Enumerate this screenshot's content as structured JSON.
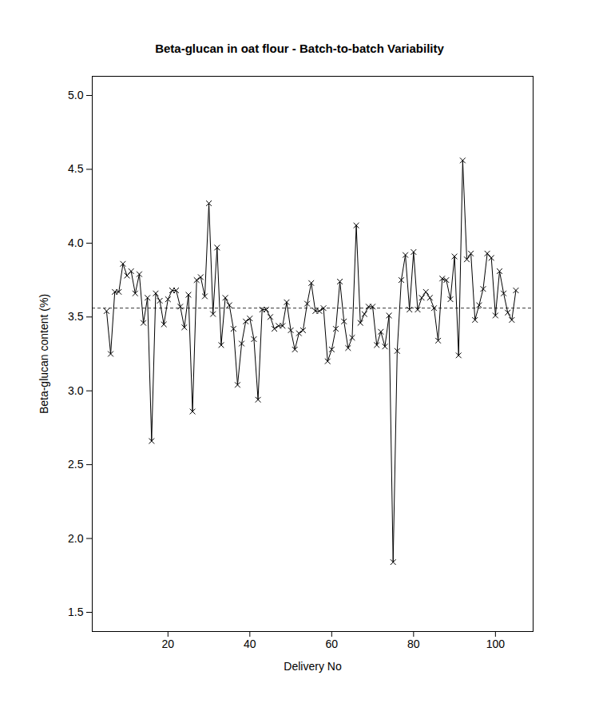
{
  "chart_data": {
    "type": "line",
    "title": "Beta-glucan in oat flour - Batch-to-batch Variability",
    "x_label": "Delivery No",
    "y_label": "Beta-glucan content (%)",
    "x": [
      5,
      6,
      7,
      8,
      9,
      10,
      11,
      12,
      13,
      14,
      15,
      16,
      17,
      18,
      19,
      20,
      21,
      22,
      23,
      24,
      25,
      26,
      27,
      28,
      29,
      30,
      31,
      32,
      33,
      34,
      35,
      36,
      37,
      38,
      39,
      40,
      41,
      42,
      43,
      44,
      45,
      46,
      47,
      48,
      49,
      50,
      51,
      52,
      53,
      54,
      55,
      56,
      57,
      58,
      59,
      60,
      61,
      62,
      63,
      64,
      65,
      66,
      67,
      68,
      69,
      70,
      71,
      72,
      73,
      74,
      75,
      76,
      77,
      78,
      79,
      80,
      81,
      82,
      83,
      84,
      85,
      86,
      87,
      88,
      89,
      90,
      91,
      92,
      93,
      94,
      95,
      96,
      97,
      98,
      99,
      100,
      101,
      102,
      103,
      104,
      105
    ],
    "values": [
      3.54,
      3.25,
      3.67,
      3.67,
      3.86,
      3.78,
      3.81,
      3.66,
      3.79,
      3.46,
      3.63,
      2.66,
      3.66,
      3.61,
      3.45,
      3.62,
      3.68,
      3.68,
      3.57,
      3.43,
      3.65,
      2.86,
      3.75,
      3.77,
      3.64,
      4.27,
      3.52,
      3.97,
      3.31,
      3.63,
      3.58,
      3.42,
      3.04,
      3.32,
      3.47,
      3.49,
      3.35,
      2.94,
      3.55,
      3.55,
      3.5,
      3.42,
      3.44,
      3.44,
      3.6,
      3.41,
      3.28,
      3.39,
      3.41,
      3.59,
      3.73,
      3.54,
      3.54,
      3.56,
      3.2,
      3.28,
      3.42,
      3.74,
      3.47,
      3.29,
      3.36,
      4.12,
      3.46,
      3.52,
      3.57,
      3.57,
      3.31,
      3.4,
      3.3,
      3.51,
      1.84,
      3.27,
      3.75,
      3.92,
      3.55,
      3.94,
      3.55,
      3.63,
      3.67,
      3.63,
      3.56,
      3.34,
      3.76,
      3.75,
      3.62,
      3.91,
      3.24,
      4.56,
      3.89,
      3.93,
      3.48,
      3.58,
      3.69,
      3.93,
      3.9,
      3.51,
      3.81,
      3.66,
      3.53,
      3.48,
      3.68
    ],
    "color": "#000000",
    "marker": "x",
    "line_style": "solid",
    "reference_line": 3.56,
    "xlim": [
      1.5,
      109.2
    ],
    "ylim": [
      1.37,
      5.13
    ],
    "xticks": [
      20,
      40,
      60,
      80,
      100
    ],
    "yticks": [
      1.5,
      {
        "value": 2,
        "label": "2.0"
      },
      2.5,
      {
        "value": 3,
        "label": "3.0"
      },
      3.5,
      {
        "value": 4,
        "label": "4.0"
      },
      4.5,
      {
        "value": 5,
        "label": "5.0"
      }
    ],
    "grid": false
  }
}
